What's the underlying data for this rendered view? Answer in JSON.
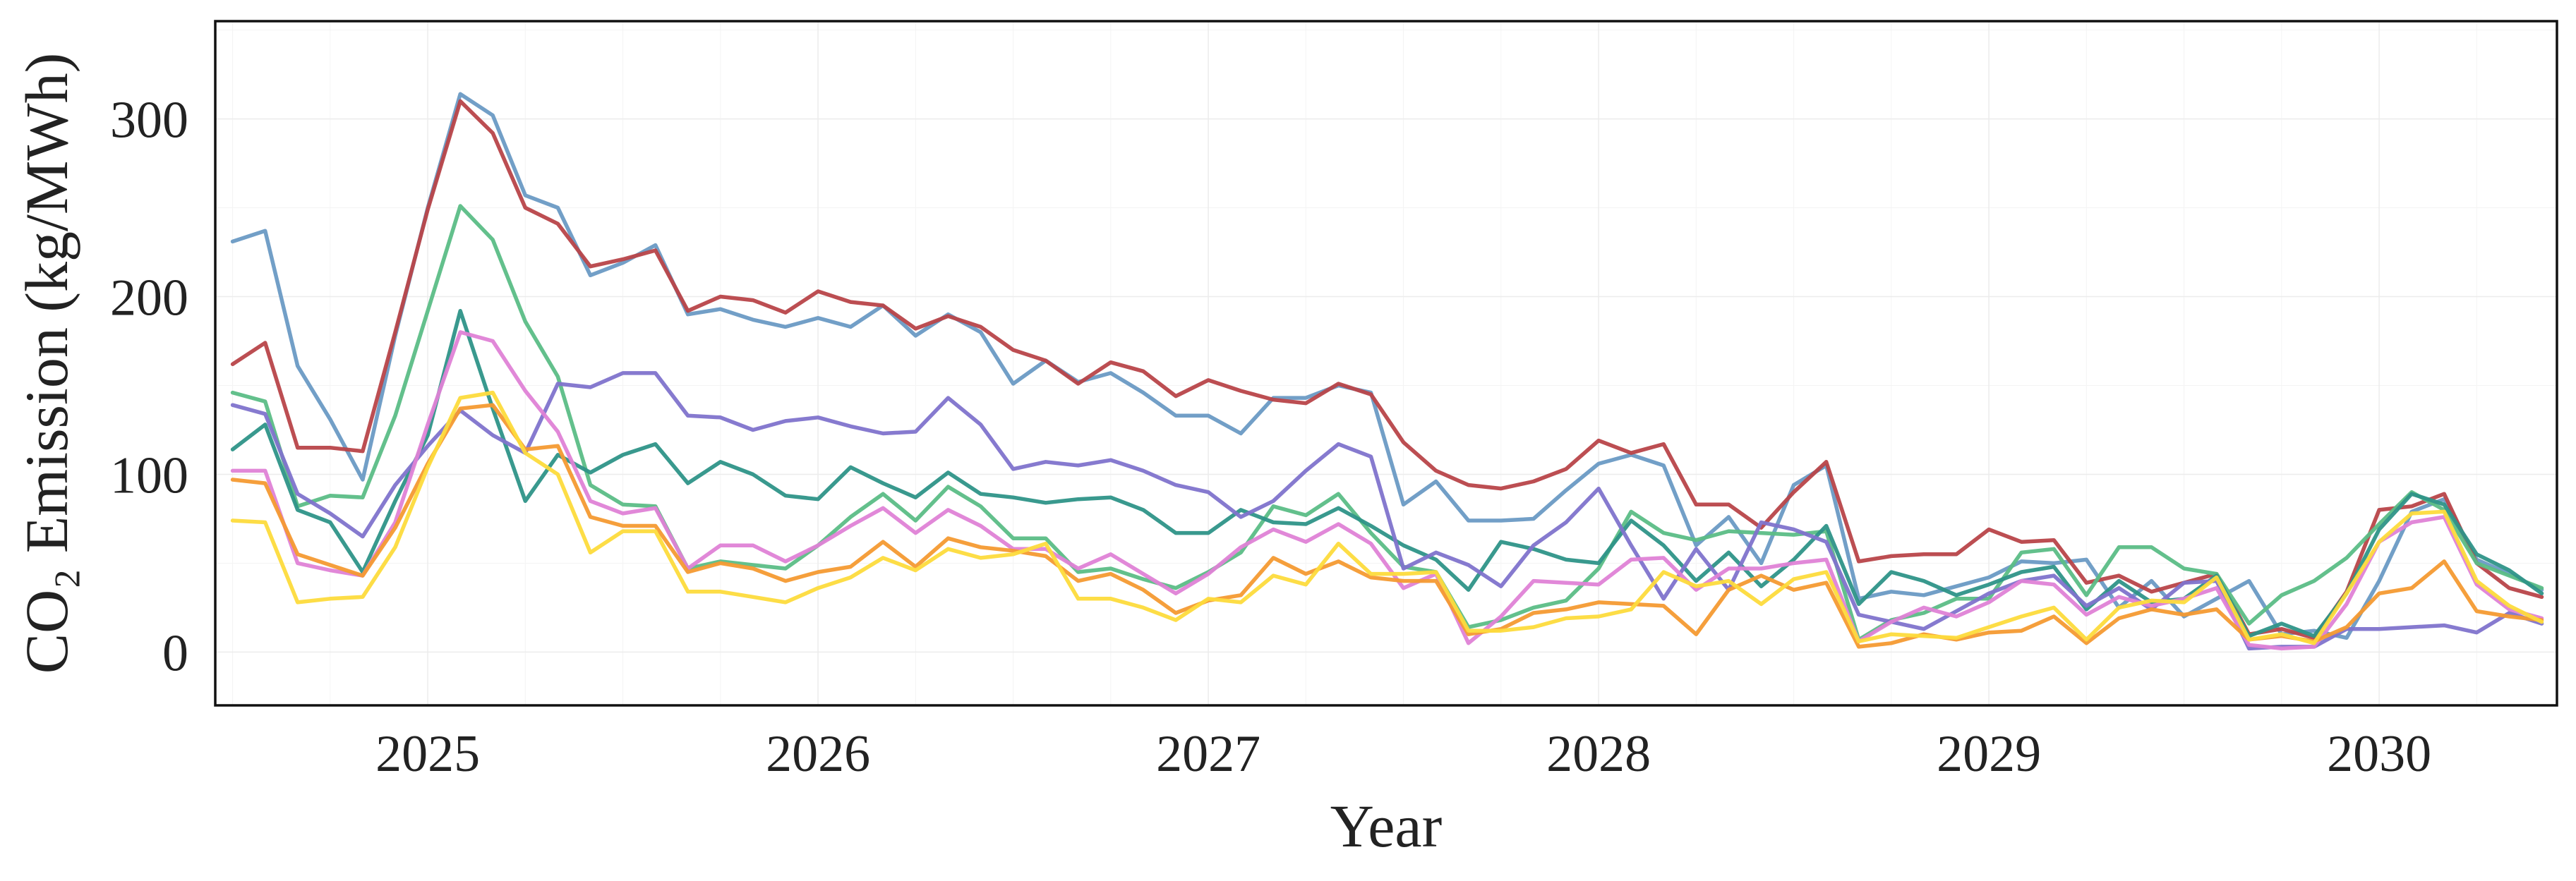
{
  "chart_data": {
    "type": "line",
    "title": "",
    "xlabel": "Year",
    "ylabel": "CO₂ Emission (kg/MWh)",
    "ylim": [
      -30,
      355
    ],
    "xlim": [
      "2024-06-15",
      "2030-06-15"
    ],
    "grid": true,
    "x_tick_labels": [
      "2025",
      "2026",
      "2027",
      "2028",
      "2029",
      "2030"
    ],
    "y_tick_labels": [
      "0",
      "100",
      "200",
      "300"
    ],
    "y_ticks": [
      0,
      100,
      200,
      300
    ],
    "x": [
      "2024-07",
      "2024-08",
      "2024-09",
      "2024-10",
      "2024-11",
      "2024-12",
      "2025-01",
      "2025-02",
      "2025-03",
      "2025-04",
      "2025-05",
      "2025-06",
      "2025-07",
      "2025-08",
      "2025-09",
      "2025-10",
      "2025-11",
      "2025-12",
      "2026-01",
      "2026-02",
      "2026-03",
      "2026-04",
      "2026-05",
      "2026-06",
      "2026-07",
      "2026-08",
      "2026-09",
      "2026-10",
      "2026-11",
      "2026-12",
      "2027-01",
      "2027-02",
      "2027-03",
      "2027-04",
      "2027-05",
      "2027-06",
      "2027-07",
      "2027-08",
      "2027-09",
      "2027-10",
      "2027-11",
      "2027-12",
      "2028-01",
      "2028-02",
      "2028-03",
      "2028-04",
      "2028-05",
      "2028-06",
      "2028-07",
      "2028-08",
      "2028-09",
      "2028-10",
      "2028-11",
      "2028-12",
      "2029-01",
      "2029-02",
      "2029-03",
      "2029-04",
      "2029-05",
      "2029-06",
      "2029-07",
      "2029-08",
      "2029-09",
      "2029-10",
      "2029-11",
      "2029-12",
      "2030-01",
      "2030-02",
      "2030-03",
      "2030-04",
      "2030-05",
      "2030-06"
    ],
    "series": [
      {
        "color": "#6a9ac4",
        "values": [
          231,
          237,
          161,
          131,
          97,
          178,
          250,
          314,
          302,
          257,
          250,
          212,
          219,
          229,
          190,
          193,
          187,
          183,
          188,
          183,
          195,
          178,
          190,
          180,
          151,
          164,
          152,
          157,
          146,
          133,
          133,
          123,
          143,
          143,
          150,
          146,
          83,
          96,
          74,
          74,
          75,
          91,
          106,
          111,
          105,
          60,
          76,
          50,
          94,
          105,
          30,
          34,
          32,
          37,
          42,
          51,
          50,
          52,
          25,
          40,
          20,
          30,
          40,
          10,
          12,
          8,
          40,
          79,
          86,
          52,
          44,
          35
        ]
      },
      {
        "color": "#b84449",
        "values": [
          162,
          174,
          115,
          115,
          113,
          180,
          249,
          310,
          292,
          250,
          241,
          217,
          221,
          226,
          192,
          200,
          198,
          191,
          203,
          197,
          195,
          182,
          189,
          183,
          170,
          164,
          151,
          163,
          158,
          144,
          153,
          147,
          142,
          140,
          151,
          145,
          118,
          102,
          94,
          92,
          96,
          103,
          119,
          112,
          117,
          83,
          83,
          70,
          90,
          107,
          51,
          54,
          55,
          55,
          69,
          62,
          63,
          39,
          43,
          34,
          39,
          44,
          10,
          13,
          8,
          34,
          80,
          82,
          89,
          50,
          36,
          31
        ]
      },
      {
        "color": "#5bbd86",
        "values": [
          146,
          141,
          82,
          88,
          87,
          133,
          192,
          251,
          232,
          186,
          155,
          94,
          83,
          82,
          47,
          51,
          49,
          47,
          60,
          76,
          89,
          74,
          93,
          82,
          64,
          64,
          45,
          47,
          41,
          36,
          45,
          56,
          82,
          77,
          89,
          67,
          48,
          45,
          14,
          18,
          25,
          29,
          47,
          79,
          67,
          63,
          68,
          67,
          66,
          68,
          7,
          18,
          22,
          30,
          30,
          56,
          58,
          32,
          59,
          59,
          47,
          44,
          16,
          32,
          40,
          53,
          72,
          90,
          80,
          50,
          43,
          36
        ]
      },
      {
        "color": "#2e9488",
        "values": [
          114,
          128,
          80,
          73,
          45,
          85,
          122,
          192,
          137,
          85,
          111,
          101,
          111,
          117,
          95,
          107,
          100,
          88,
          86,
          104,
          95,
          87,
          101,
          89,
          87,
          84,
          86,
          87,
          80,
          67,
          67,
          80,
          73,
          72,
          81,
          71,
          60,
          52,
          35,
          62,
          58,
          52,
          50,
          74,
          60,
          40,
          56,
          37,
          52,
          71,
          27,
          45,
          40,
          32,
          38,
          45,
          48,
          24,
          40,
          28,
          30,
          43,
          9,
          16,
          9,
          33,
          69,
          89,
          83,
          55,
          46,
          33
        ]
      },
      {
        "color": "#8073cc",
        "values": [
          139,
          134,
          89,
          78,
          65,
          94,
          116,
          136,
          122,
          112,
          151,
          149,
          157,
          157,
          133,
          132,
          125,
          130,
          132,
          127,
          123,
          124,
          143,
          128,
          103,
          107,
          105,
          108,
          102,
          94,
          90,
          76,
          85,
          102,
          117,
          110,
          47,
          56,
          49,
          37,
          60,
          73,
          92,
          60,
          30,
          58,
          35,
          73,
          69,
          62,
          21,
          17,
          13,
          23,
          33,
          40,
          43,
          26,
          36,
          24,
          39,
          40,
          2,
          3,
          3,
          13,
          13,
          14,
          15,
          11,
          22,
          16
        ]
      },
      {
        "color": "#df82d6",
        "values": [
          102,
          102,
          50,
          46,
          43,
          73,
          128,
          180,
          175,
          147,
          124,
          85,
          78,
          81,
          47,
          60,
          60,
          51,
          60,
          71,
          81,
          67,
          80,
          71,
          58,
          58,
          47,
          55,
          44,
          33,
          44,
          59,
          69,
          62,
          72,
          61,
          36,
          44,
          5,
          20,
          40,
          39,
          38,
          52,
          53,
          35,
          47,
          47,
          50,
          52,
          6,
          17,
          25,
          20,
          28,
          40,
          38,
          21,
          31,
          26,
          30,
          36,
          4,
          2,
          3,
          27,
          62,
          73,
          76,
          38,
          24,
          19
        ]
      },
      {
        "color": "#f49a32",
        "values": [
          97,
          95,
          55,
          49,
          43,
          70,
          106,
          137,
          139,
          114,
          116,
          76,
          71,
          71,
          45,
          50,
          47,
          40,
          45,
          48,
          62,
          48,
          64,
          59,
          57,
          54,
          40,
          44,
          35,
          22,
          29,
          32,
          53,
          44,
          51,
          42,
          40,
          40,
          10,
          13,
          22,
          24,
          28,
          27,
          26,
          10,
          35,
          43,
          35,
          39,
          3,
          5,
          10,
          7,
          11,
          12,
          20,
          5,
          19,
          24,
          21,
          24,
          7,
          9,
          6,
          14,
          33,
          36,
          51,
          23,
          20,
          18
        ]
      },
      {
        "color": "#fddb3c",
        "values": [
          74,
          73,
          28,
          30,
          31,
          59,
          104,
          143,
          146,
          112,
          100,
          56,
          68,
          68,
          34,
          34,
          31,
          28,
          36,
          42,
          53,
          46,
          58,
          53,
          55,
          61,
          30,
          30,
          25,
          18,
          30,
          28,
          43,
          38,
          61,
          44,
          44,
          45,
          12,
          12,
          14,
          19,
          20,
          24,
          45,
          37,
          40,
          27,
          41,
          45,
          6,
          10,
          9,
          8,
          14,
          20,
          25,
          7,
          25,
          29,
          28,
          42,
          7,
          10,
          5,
          33,
          62,
          78,
          79,
          40,
          26,
          17
        ]
      }
    ]
  }
}
